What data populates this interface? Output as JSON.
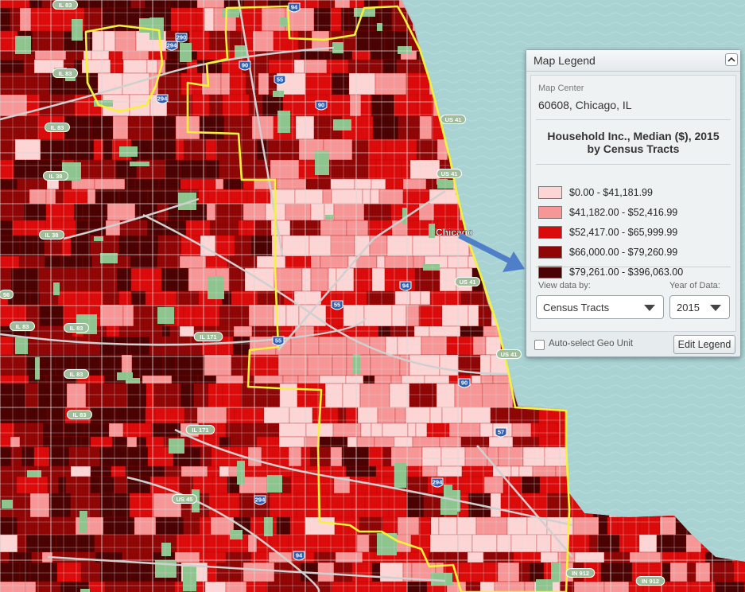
{
  "map": {
    "city_label": "Chicago",
    "shields": [
      {
        "text": "IL 83",
        "kind": "state"
      },
      {
        "text": "IL 83",
        "kind": "state"
      },
      {
        "text": "IL 83",
        "kind": "state"
      },
      {
        "text": "IL 38",
        "kind": "state"
      },
      {
        "text": "IL 38",
        "kind": "state"
      },
      {
        "text": "IL 83",
        "kind": "state"
      },
      {
        "text": "IL 83",
        "kind": "state"
      },
      {
        "text": "IL 83",
        "kind": "state"
      },
      {
        "text": "IL 83",
        "kind": "state"
      },
      {
        "text": "IL 171",
        "kind": "state"
      },
      {
        "text": "IL 171",
        "kind": "state"
      },
      {
        "text": "US 45",
        "kind": "state"
      },
      {
        "text": "US 41",
        "kind": "state"
      },
      {
        "text": "US 41",
        "kind": "state"
      },
      {
        "text": "US 41",
        "kind": "state"
      },
      {
        "text": "US 41",
        "kind": "state"
      },
      {
        "text": "IN 912",
        "kind": "state"
      },
      {
        "text": "IN 912",
        "kind": "state"
      },
      {
        "text": "56",
        "kind": "state"
      },
      {
        "text": "294",
        "kind": "interstate"
      },
      {
        "text": "294",
        "kind": "interstate"
      },
      {
        "text": "290",
        "kind": "interstate"
      },
      {
        "text": "90",
        "kind": "interstate"
      },
      {
        "text": "90",
        "kind": "interstate"
      },
      {
        "text": "94",
        "kind": "interstate"
      },
      {
        "text": "55",
        "kind": "interstate"
      },
      {
        "text": "55",
        "kind": "interstate"
      },
      {
        "text": "55",
        "kind": "interstate"
      },
      {
        "text": "94",
        "kind": "interstate"
      },
      {
        "text": "90",
        "kind": "interstate"
      },
      {
        "text": "57",
        "kind": "interstate"
      },
      {
        "text": "294",
        "kind": "interstate"
      },
      {
        "text": "294",
        "kind": "interstate"
      },
      {
        "text": "94",
        "kind": "interstate"
      }
    ]
  },
  "legend": {
    "title": "Map Legend",
    "map_center_label": "Map Center",
    "map_center_value": "60608, Chicago, IL",
    "theme_line1": "Household Inc., Median ($), 2015",
    "theme_line2": "by Census Tracts",
    "classes": [
      {
        "label": "$0.00 - $41,181.99",
        "color": "#fdd5d5"
      },
      {
        "label": "$41,182.00 - $52,416.99",
        "color": "#f69696"
      },
      {
        "label": "$52,417.00 - $65,999.99",
        "color": "#dc0b0b"
      },
      {
        "label": "$66,000.00 - $79,260.99",
        "color": "#8e0606"
      },
      {
        "label": "$79,261.00 - $396,063.00",
        "color": "#4a0202"
      }
    ],
    "view_data_label": "View data by:",
    "view_data_value": "Census Tracts",
    "year_label": "Year of Data:",
    "year_value": "2015",
    "auto_select_label": "Auto-select Geo Unit",
    "edit_button": "Edit Legend"
  },
  "colors": {
    "water": "#a9d3d3",
    "boundary": "#f5f23a",
    "road": "#c9c9c9",
    "park": "#8ec48e",
    "arrow": "#4f7fc9"
  }
}
